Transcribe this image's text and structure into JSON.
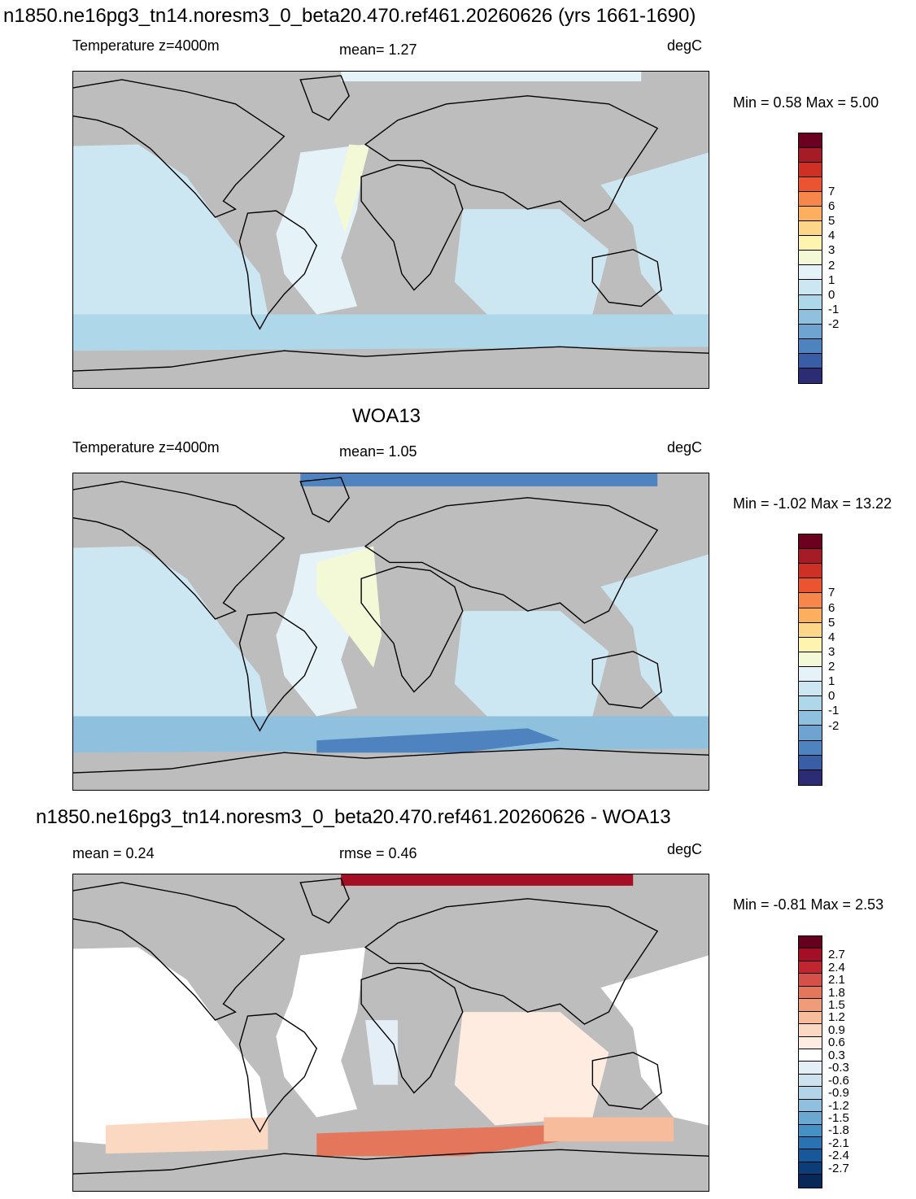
{
  "main_title": "n1850.ne16pg3_tn14.noresm3_0_beta20.470.ref461.20260626 (yrs 1661-1690)",
  "panels": [
    {
      "left_label": "Temperature z=4000m",
      "center_label": "mean=   1.27",
      "right_label": "degC",
      "minmax": "Min =   0.58 Max =   5.00",
      "colorbar": {
        "colors": [
          "#6b0020",
          "#a61c26",
          "#cf3026",
          "#ea5431",
          "#f7864b",
          "#fbaf5f",
          "#fdd68a",
          "#fff3b0",
          "#f3f8d7",
          "#e5f3f8",
          "#cce7f1",
          "#aed8ea",
          "#8fc1de",
          "#6ea4cf",
          "#4f83bf",
          "#3a5ea6",
          "#2b2c73"
        ],
        "labels": [
          "7",
          "6",
          "5",
          "4",
          "3",
          "2",
          "1",
          "0",
          "-1",
          "-2"
        ]
      }
    },
    {
      "subtitle": "WOA13",
      "left_label": "Temperature z=4000m",
      "center_label": "mean=   1.05",
      "right_label": "degC",
      "minmax": "Min =  -1.02 Max =  13.22",
      "colorbar": {
        "colors": [
          "#6b0020",
          "#a61c26",
          "#cf3026",
          "#ea5431",
          "#f7864b",
          "#fbaf5f",
          "#fdd68a",
          "#fff3b0",
          "#f3f8d7",
          "#e5f3f8",
          "#cce7f1",
          "#aed8ea",
          "#8fc1de",
          "#6ea4cf",
          "#4f83bf",
          "#3a5ea6",
          "#2b2c73"
        ],
        "labels": [
          "7",
          "6",
          "5",
          "4",
          "3",
          "2",
          "1",
          "0",
          "-1",
          "-2"
        ]
      }
    },
    {
      "subtitle": "n1850.ne16pg3_tn14.noresm3_0_beta20.470.ref461.20260626 - WOA13",
      "left_label": "mean =   0.24",
      "center_label": "rmse =   0.46",
      "right_label": "degC",
      "minmax": "Min =  -0.81 Max =   2.53",
      "colorbar": {
        "colors": [
          "#67001f",
          "#a50f25",
          "#c0262f",
          "#d6504a",
          "#e4765c",
          "#f09b7a",
          "#f7bc9c",
          "#fbd8c1",
          "#fdecdf",
          "#ffffff",
          "#e3eef6",
          "#cde2ef",
          "#b2d3e8",
          "#91c0de",
          "#6aa8d2",
          "#4591c5",
          "#2a73b3",
          "#18579a",
          "#0c3d78",
          "#08285a"
        ],
        "labels": [
          "2.7",
          "2.4",
          "2.1",
          "1.8",
          "1.5",
          "1.2",
          "0.9",
          "0.6",
          "0.3",
          "-0.3",
          "-0.6",
          "-0.9",
          "-1.2",
          "-1.5",
          "-1.8",
          "-2.1",
          "-2.4",
          "-2.7"
        ]
      }
    }
  ]
}
